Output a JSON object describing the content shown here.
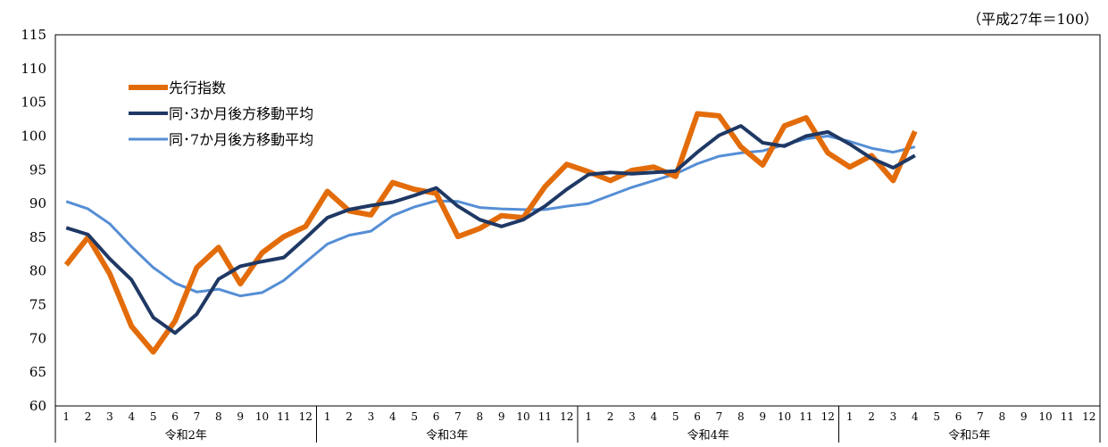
{
  "note": "（平成27年＝100）",
  "chart_data": {
    "type": "line",
    "ylim": [
      60,
      115
    ],
    "y_ticks": [
      60,
      65,
      70,
      75,
      80,
      85,
      90,
      95,
      100,
      105,
      110,
      115
    ],
    "months": [
      "1",
      "2",
      "3",
      "4",
      "5",
      "6",
      "7",
      "8",
      "9",
      "10",
      "11",
      "12"
    ],
    "years": [
      "令和2年",
      "令和3年",
      "令和4年",
      "令和5年"
    ],
    "legend_position": "top-left",
    "grid": false,
    "series": [
      {
        "name": "先行指数",
        "color": "#E36C0A",
        "values": [
          80.9,
          85.0,
          79.6,
          71.8,
          68.0,
          72.6,
          80.5,
          83.5,
          78.1,
          82.7,
          85.1,
          86.6,
          91.8,
          88.9,
          88.3,
          93.1,
          92.1,
          91.5,
          85.1,
          86.3,
          88.2,
          87.9,
          92.5,
          95.8,
          94.7,
          93.4,
          94.9,
          95.4,
          94.0,
          103.3,
          103.0,
          98.4,
          95.7,
          101.5,
          102.7,
          97.5,
          95.4,
          97.1,
          93.4,
          100.7
        ]
      },
      {
        "name": "同･3か月後方移動平均",
        "color": "#1F3864",
        "values": [
          86.4,
          85.4,
          81.8,
          78.7,
          73.1,
          70.8,
          73.6,
          78.8,
          80.7,
          81.4,
          82.0,
          84.9,
          87.9,
          89.1,
          89.7,
          90.2,
          91.2,
          92.3,
          89.6,
          87.6,
          86.6,
          87.6,
          89.6,
          92.1,
          94.3,
          94.6,
          94.4,
          94.6,
          94.8,
          97.6,
          100.1,
          101.5,
          99.0,
          98.5,
          100.0,
          100.6,
          98.8,
          96.7,
          95.3,
          97.1
        ]
      },
      {
        "name": "同･7か月後方移動平均",
        "color": "#558ED5",
        "values": [
          90.3,
          89.2,
          87.0,
          83.6,
          80.5,
          78.2,
          76.9,
          77.3,
          76.3,
          76.8,
          78.6,
          81.3,
          84.0,
          85.3,
          85.9,
          88.2,
          89.5,
          90.4,
          90.3,
          89.4,
          89.2,
          89.1,
          89.1,
          89.6,
          90.0,
          91.2,
          92.4,
          93.4,
          94.4,
          95.9,
          97.0,
          97.5,
          97.8,
          98.7,
          99.6,
          100.0,
          99.2,
          98.2,
          97.6,
          98.4
        ]
      }
    ]
  }
}
